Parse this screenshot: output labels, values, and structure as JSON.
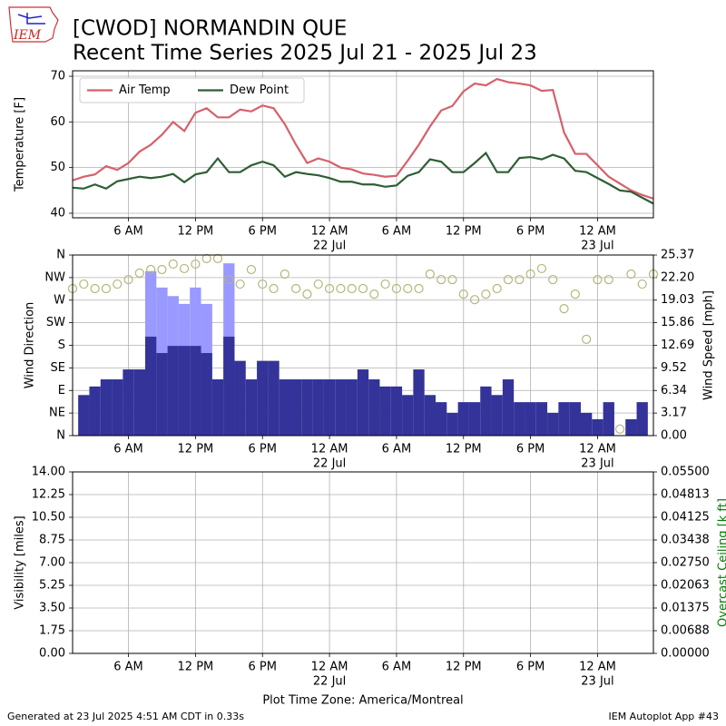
{
  "header": {
    "title": "[CWOD] NORMANDIN  QUE",
    "subtitle": "Recent Time Series 2025 Jul 21 - 2025 Jul 23",
    "logo_text": "IEM"
  },
  "footer": {
    "generated": "Generated at 23 Jul 2025 4:51 AM CDT in 0.33s",
    "app": "IEM Autoplot App #43"
  },
  "chart_data": [
    {
      "type": "line",
      "ylabel": "Temperature [F]",
      "xlim": [
        1,
        53
      ],
      "ylim": [
        39,
        71.2
      ],
      "yticks": [
        40,
        50,
        60,
        70
      ],
      "grid": true,
      "legend": "upper left",
      "xticks": [
        {
          "value": 6,
          "label": "6 AM"
        },
        {
          "value": 12,
          "label": "12 PM"
        },
        {
          "value": 18,
          "label": "6 PM"
        },
        {
          "value": 24,
          "label": "12 AM",
          "date": "22 Jul"
        },
        {
          "value": 30,
          "label": "6 AM"
        },
        {
          "value": 36,
          "label": "12 PM"
        },
        {
          "value": 42,
          "label": "6 PM"
        },
        {
          "value": 48,
          "label": "12 AM",
          "date": "23 Jul"
        }
      ],
      "x": [
        1,
        2,
        3,
        4,
        5,
        6,
        7,
        8,
        9,
        10,
        11,
        12,
        13,
        14,
        15,
        16,
        17,
        18,
        19,
        20,
        21,
        22,
        23,
        24,
        25,
        26,
        27,
        28,
        29,
        30,
        31,
        32,
        33,
        34,
        35,
        36,
        37,
        38,
        39,
        40,
        41,
        42,
        43,
        44,
        45,
        46,
        47,
        48,
        49,
        50,
        51,
        52,
        53
      ],
      "series": [
        {
          "name": "Air Temp",
          "color": "#d6606b",
          "values": [
            47.2,
            48,
            48.5,
            50.3,
            49.5,
            51,
            53.5,
            55,
            57.2,
            60,
            58,
            62,
            63,
            61,
            61,
            62.7,
            62.3,
            63.6,
            63,
            59.5,
            55,
            51,
            52,
            51.3,
            50,
            49.6,
            48.7,
            48.4,
            48,
            48.2,
            51.5,
            55,
            59,
            62.5,
            63.5,
            66.7,
            68.4,
            68,
            69.4,
            68.7,
            68.4,
            68,
            66.8,
            67,
            57.7,
            53,
            53,
            50.5,
            48,
            46.5,
            45,
            44,
            43.2
          ]
        },
        {
          "name": "Dew Point",
          "color": "#2e5e34",
          "values": [
            45.6,
            45.4,
            46.3,
            45.4,
            47,
            47.5,
            48,
            47.7,
            48,
            48.6,
            46.8,
            48.5,
            49,
            52,
            49,
            49,
            50.5,
            51.3,
            50.5,
            48,
            49,
            48.6,
            48.3,
            47.7,
            46.9,
            46.9,
            46.3,
            46.3,
            45.8,
            46.1,
            48.2,
            49,
            51.8,
            51.3,
            49,
            49,
            51,
            53.2,
            49,
            49,
            52.1,
            52.3,
            51.8,
            52.8,
            52,
            49.3,
            49,
            47.7,
            46.4,
            45,
            44.7,
            43.4,
            42.1
          ]
        }
      ]
    },
    {
      "type": "wind",
      "ylabel": "Wind Direction",
      "y2label": "Wind Speed [mph]",
      "xlim": [
        1,
        53
      ],
      "ylim": [
        0,
        360
      ],
      "y2lim": [
        0,
        25.37
      ],
      "grid": true,
      "yticks": [
        {
          "value": 0,
          "label": "N"
        },
        {
          "value": 45,
          "label": "NE"
        },
        {
          "value": 90,
          "label": "E"
        },
        {
          "value": 135,
          "label": "SE"
        },
        {
          "value": 180,
          "label": "S"
        },
        {
          "value": 225,
          "label": "SW"
        },
        {
          "value": 270,
          "label": "W"
        },
        {
          "value": 315,
          "label": "NW"
        },
        {
          "value": 360,
          "label": "N"
        }
      ],
      "y2ticks": [
        {
          "value": 0,
          "label": "0.00"
        },
        3.17,
        6.34,
        9.52,
        12.69,
        15.86,
        19.03,
        {
          "value": 22.2,
          "label": "22.20"
        },
        25.37
      ],
      "xticks": [
        {
          "value": 6,
          "label": "6 AM"
        },
        {
          "value": 12,
          "label": "12 PM"
        },
        {
          "value": 18,
          "label": "6 PM"
        },
        {
          "value": 24,
          "label": "12 AM",
          "date": "22 Jul"
        },
        {
          "value": 30,
          "label": "6 AM"
        },
        {
          "value": 36,
          "label": "12 PM"
        },
        {
          "value": 42,
          "label": "6 PM"
        },
        {
          "value": 48,
          "label": "12 AM",
          "date": "23 Jul"
        }
      ],
      "x": [
        1,
        2,
        3,
        4,
        5,
        6,
        7,
        8,
        9,
        10,
        11,
        12,
        13,
        14,
        15,
        16,
        17,
        18,
        19,
        20,
        21,
        22,
        23,
        24,
        25,
        26,
        27,
        28,
        29,
        30,
        31,
        32,
        33,
        34,
        35,
        36,
        37,
        38,
        39,
        40,
        41,
        42,
        43,
        44,
        45,
        46,
        47,
        48,
        49,
        50,
        51,
        52,
        53
      ],
      "series": [
        {
          "type": "bar",
          "axis": "y2",
          "color": "#9999ff",
          "values": [
            null,
            null,
            null,
            null,
            null,
            null,
            null,
            23.1,
            20.8,
            19.6,
            18.5,
            20.8,
            18.5,
            null,
            24.2,
            null,
            null,
            null,
            null,
            null,
            null,
            null,
            null,
            null,
            null,
            null,
            null,
            null,
            null,
            null,
            null,
            null,
            null,
            null,
            null,
            null,
            null,
            null,
            null,
            null,
            null,
            null,
            null,
            null,
            null,
            null,
            null,
            null,
            null,
            null,
            null,
            null,
            null
          ]
        },
        {
          "type": "bar",
          "axis": "y2",
          "color": "#333399",
          "values": [
            null,
            5.7,
            6.9,
            7.9,
            7.9,
            9.3,
            9.3,
            13.9,
            11.6,
            12.6,
            12.6,
            12.6,
            11.6,
            7.9,
            13.9,
            10.5,
            7.9,
            10.5,
            10.5,
            7.9,
            7.9,
            7.9,
            7.9,
            7.9,
            7.9,
            7.9,
            9.3,
            7.9,
            6.9,
            6.9,
            5.7,
            9.3,
            5.7,
            4.7,
            3.2,
            4.7,
            4.7,
            6.9,
            5.7,
            7.9,
            4.7,
            4.7,
            4.7,
            3.2,
            4.7,
            4.7,
            3.2,
            2.3,
            4.7,
            0,
            2.3,
            4.7,
            null
          ]
        },
        {
          "type": "scatter",
          "color": "#b5b57a",
          "values": [
            293,
            302,
            293,
            293,
            302,
            311,
            324,
            331,
            331,
            342,
            333,
            342,
            353,
            353,
            311,
            302,
            331,
            302,
            293,
            322,
            293,
            282,
            302,
            293,
            293,
            293,
            293,
            282,
            302,
            293,
            293,
            293,
            322,
            311,
            311,
            282,
            271,
            282,
            293,
            311,
            311,
            322,
            333,
            311,
            253,
            282,
            192,
            311,
            311,
            13,
            322,
            302,
            322
          ]
        }
      ]
    },
    {
      "type": "line",
      "ylabel": "Visibility [miles]",
      "y2label": "Overcast Ceiling [k ft]",
      "xlabel": "Plot Time Zone: America/Montreal",
      "xlim": [
        1,
        53
      ],
      "ylim": [
        0,
        14
      ],
      "y2lim": [
        0,
        0.055
      ],
      "grid": true,
      "yticks": [
        {
          "value": 0,
          "label": "0.00"
        },
        1.75,
        {
          "value": 3.5,
          "label": "3.50"
        },
        5.25,
        {
          "value": 7,
          "label": "7.00"
        },
        8.75,
        {
          "value": 10.5,
          "label": "10.50"
        },
        12.25,
        {
          "value": 14,
          "label": "14.00"
        }
      ],
      "y2ticks": [
        {
          "value": 0,
          "label": "0.00000"
        },
        {
          "value": 0.006875,
          "label": "0.00688"
        },
        {
          "value": 0.01375,
          "label": "0.01375"
        },
        {
          "value": 0.020625,
          "label": "0.02063"
        },
        {
          "value": 0.0275,
          "label": "0.02750"
        },
        {
          "value": 0.034375,
          "label": "0.03438"
        },
        {
          "value": 0.04125,
          "label": "0.04125"
        },
        {
          "value": 0.048125,
          "label": "0.04813"
        },
        {
          "value": 0.055,
          "label": "0.05500"
        }
      ],
      "xticks": [
        {
          "value": 6,
          "label": "6 AM"
        },
        {
          "value": 12,
          "label": "12 PM"
        },
        {
          "value": 18,
          "label": "6 PM"
        },
        {
          "value": 24,
          "label": "12 AM",
          "date": "22 Jul"
        },
        {
          "value": 30,
          "label": "6 AM"
        },
        {
          "value": 36,
          "label": "12 PM"
        },
        {
          "value": 42,
          "label": "6 PM"
        },
        {
          "value": 48,
          "label": "12 AM",
          "date": "23 Jul"
        }
      ],
      "series": []
    }
  ]
}
